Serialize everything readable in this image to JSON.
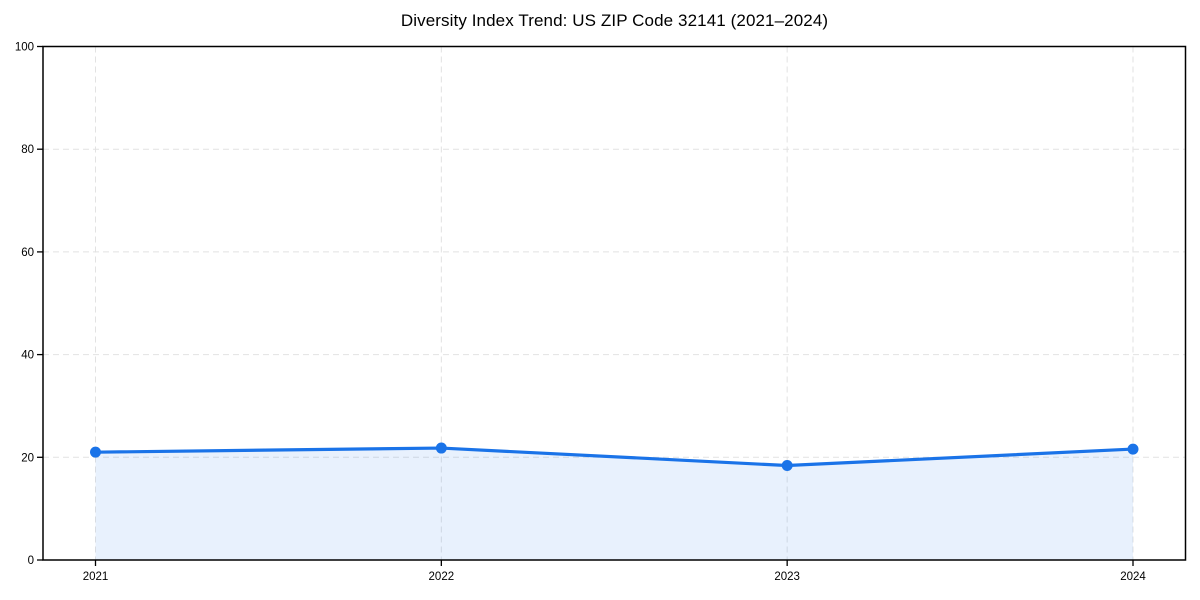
{
  "chart_data": {
    "type": "area",
    "title": "Diversity Index Trend: US ZIP Code 32141 (2021–2024)",
    "categories": [
      "2021",
      "2022",
      "2023",
      "2024"
    ],
    "series": [
      {
        "name": "Diversity Index",
        "values": [
          21.0,
          21.8,
          18.4,
          21.6
        ]
      }
    ],
    "xlabel": "",
    "ylabel": "",
    "ylim": [
      0,
      100
    ],
    "yticks": [
      0,
      20,
      40,
      60,
      80,
      100
    ],
    "grid": true,
    "grid_style": "dashed",
    "legend_position": "none",
    "marker_style": "circle",
    "colors": {
      "line": "#1a73e8",
      "marker": "#1a73e8",
      "area_fill": "rgba(26,115,232,0.10)",
      "grid": "#e2e2e2",
      "axis": "#000000",
      "tick_text": "#000000",
      "background": "#ffffff"
    }
  }
}
